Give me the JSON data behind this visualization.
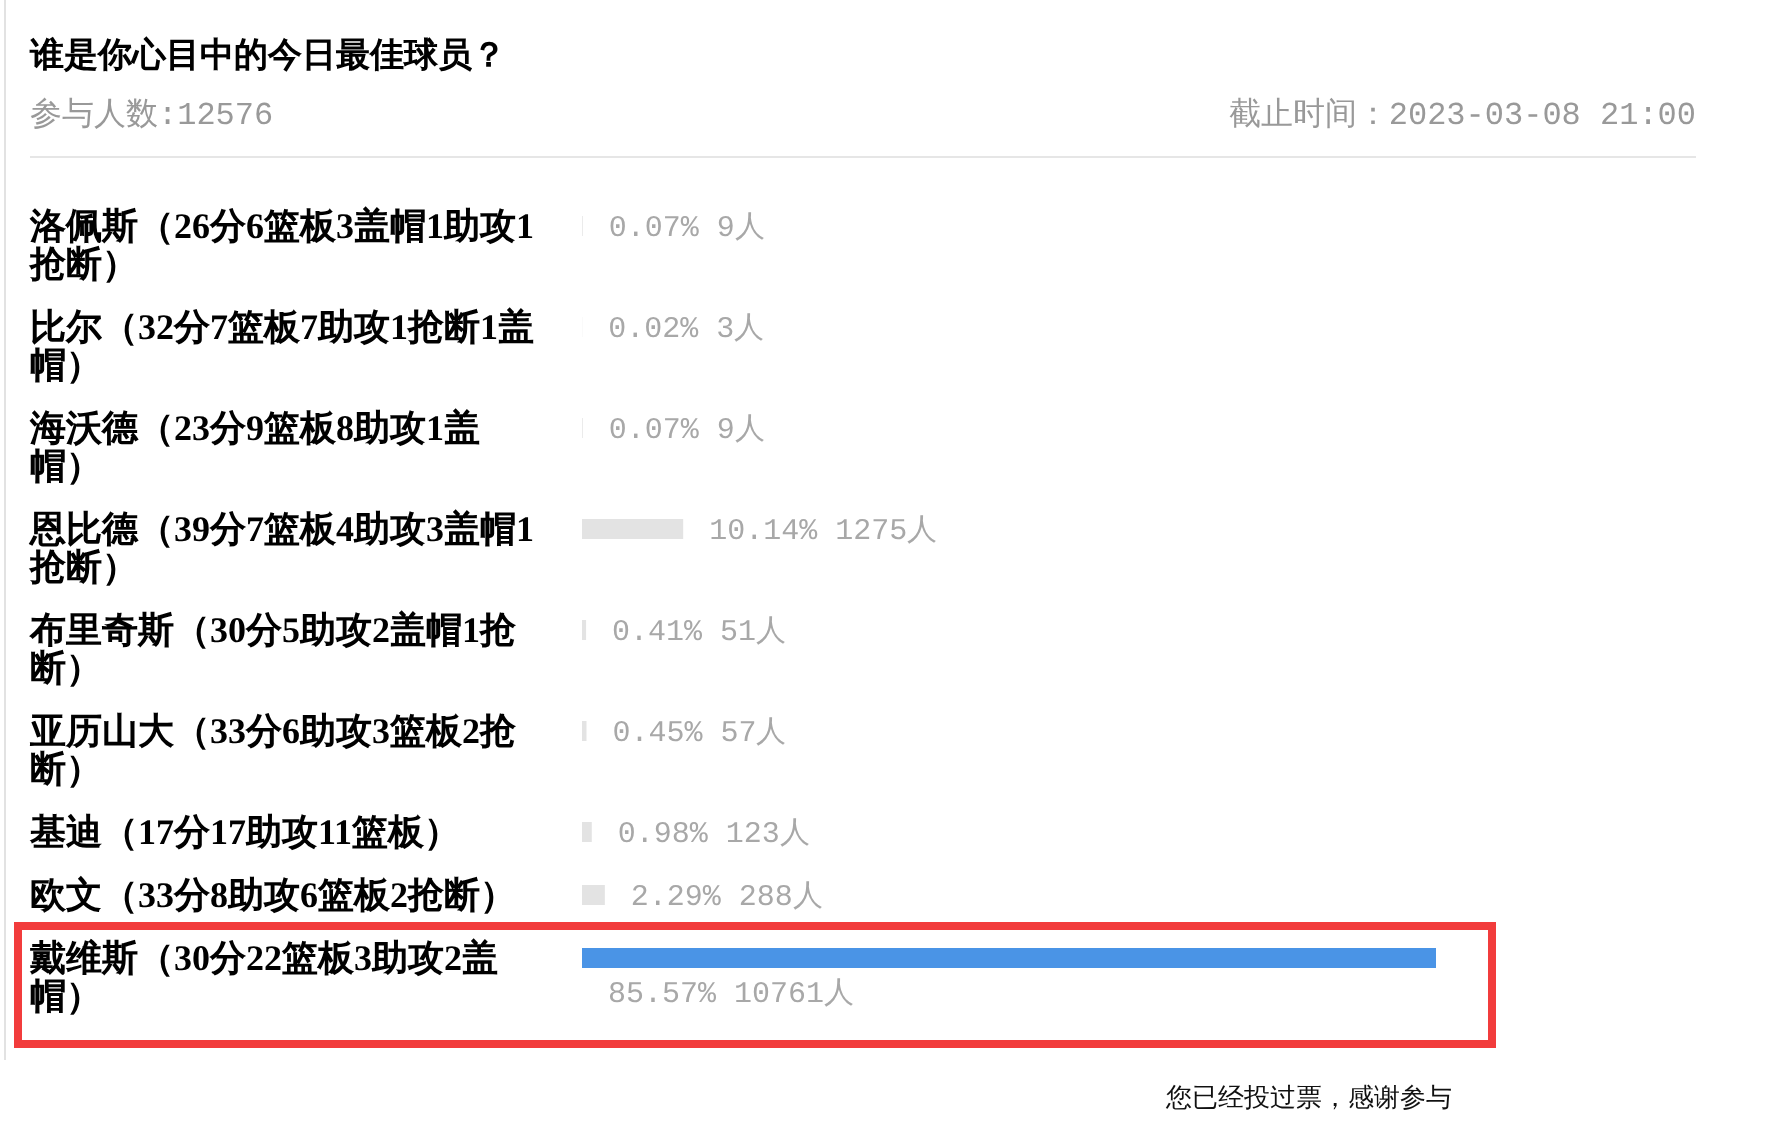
{
  "chart_data": {
    "type": "bar",
    "orientation": "horizontal",
    "title": "谁是你心目中的今日最佳球员？",
    "subtitle": "参与人数:12576",
    "annotations": [
      "截止时间：2023-03-08 21:00",
      "您已经投过票，感谢参与"
    ],
    "categories": [
      "洛佩斯（26分6篮板3盖帽1助攻1抢断）",
      "比尔（32分7篮板7助攻1抢断1盖帽）",
      "海沃德（23分9篮板8助攻1盖帽）",
      "恩比德（39分7篮板4助攻3盖帽1抢断）",
      "布里奇斯（30分5助攻2盖帽1抢断）",
      "亚历山大（33分6助攻3篮板2抢断）",
      "基迪（17分17助攻11篮板）",
      "欧文（33分8助攻6篮板2抢断）",
      "戴维斯（30分22篮板3助攻2盖帽）"
    ],
    "values": [
      0.07,
      0.02,
      0.07,
      10.14,
      0.41,
      0.45,
      0.98,
      2.29,
      85.57
    ],
    "colors": [
      "#e3e3e3",
      "#e3e3e3",
      "#e3e3e3",
      "#e3e3e3",
      "#e3e3e3",
      "#e3e3e3",
      "#e3e3e3",
      "#e3e3e3",
      "#4a94e6"
    ],
    "value_labels": [
      "0.07% 9人",
      "0.02% 3人",
      "0.07% 9人",
      "10.14% 1275人",
      "0.41% 51人",
      "0.45% 57人",
      "0.98% 123人",
      "2.29% 288人",
      "85.57% 10761人"
    ]
  }
}
